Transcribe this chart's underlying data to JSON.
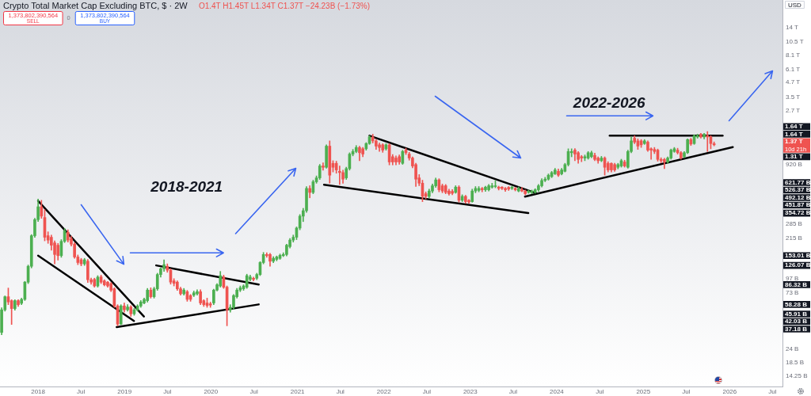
{
  "chart_data": {
    "type": "candlestick",
    "title": "Crypto Total Market Cap Excluding BTC, $ · 2W",
    "ylabel": "USD",
    "log": true,
    "xlim": [
      "2017-07-24",
      "2026-08-12"
    ],
    "xticks": [
      {
        "value": "2018-01-01",
        "label": "2018"
      },
      {
        "value": "2018-07-01",
        "label": "Jul"
      },
      {
        "value": "2019-01-01",
        "label": "2019"
      },
      {
        "value": "2019-07-01",
        "label": "Jul"
      },
      {
        "value": "2020-01-01",
        "label": "2020"
      },
      {
        "value": "2020-07-01",
        "label": "Jul"
      },
      {
        "value": "2021-01-01",
        "label": "2021"
      },
      {
        "value": "2021-07-01",
        "label": "Jul"
      },
      {
        "value": "2022-01-01",
        "label": "2022"
      },
      {
        "value": "2022-07-01",
        "label": "Jul"
      },
      {
        "value": "2023-01-01",
        "label": "2023"
      },
      {
        "value": "2023-07-01",
        "label": "Jul"
      },
      {
        "value": "2024-01-01",
        "label": "2024"
      },
      {
        "value": "2024-07-01",
        "label": "Jul"
      },
      {
        "value": "2025-01-01",
        "label": "2025"
      },
      {
        "value": "2025-07-01",
        "label": "Jul"
      },
      {
        "value": "2026-01-01",
        "label": "2026"
      },
      {
        "value": "2026-07-01",
        "label": "Jul"
      }
    ],
    "ylim": [
      11500000000.0,
      24000000000000.0
    ],
    "yticks": [
      {
        "value": 14250000000.0,
        "label": "14.25 B"
      },
      {
        "value": 18500000000.0,
        "label": "18.5 B"
      },
      {
        "value": 24000000000.0,
        "label": "24 B"
      },
      {
        "value": 73000000000.0,
        "label": "73 B"
      },
      {
        "value": 97000000000.0,
        "label": "97 B"
      },
      {
        "value": 215000000000.0,
        "label": "215 B"
      },
      {
        "value": 285000000000.0,
        "label": "285 B"
      },
      {
        "value": 920000000000.0,
        "label": "920 B"
      },
      {
        "value": 2700000000000.0,
        "label": "2.7 T"
      },
      {
        "value": 3500000000000.0,
        "label": "3.5 T"
      },
      {
        "value": 4700000000000.0,
        "label": "4.7 T"
      },
      {
        "value": 6100000000000.0,
        "label": "6.1 T"
      },
      {
        "value": 8100000000000.0,
        "label": "8.1 T"
      },
      {
        "value": 10500000000000.0,
        "label": "10.5 T"
      },
      {
        "value": 14000000000000.0,
        "label": "14 T"
      }
    ],
    "x": [
      "2017-07-31",
      "2017-08-14",
      "2017-08-28",
      "2017-09-11",
      "2017-09-25",
      "2017-10-09",
      "2017-10-23",
      "2017-11-06",
      "2017-11-20",
      "2017-12-04",
      "2017-12-18",
      "2018-01-01",
      "2018-01-15",
      "2018-01-29",
      "2018-02-12",
      "2018-02-26",
      "2018-03-12",
      "2018-03-26",
      "2018-04-09",
      "2018-04-23",
      "2018-05-07",
      "2018-05-21",
      "2018-06-04",
      "2018-06-18",
      "2018-07-02",
      "2018-07-16",
      "2018-07-30",
      "2018-08-13",
      "2018-08-27",
      "2018-09-10",
      "2018-09-24",
      "2018-10-08",
      "2018-10-22",
      "2018-11-05",
      "2018-11-19",
      "2018-12-03",
      "2018-12-17",
      "2018-12-31",
      "2019-01-14",
      "2019-01-28",
      "2019-02-11",
      "2019-02-25",
      "2019-03-11",
      "2019-03-25",
      "2019-04-08",
      "2019-04-22",
      "2019-05-06",
      "2019-05-20",
      "2019-06-03",
      "2019-06-17",
      "2019-07-01",
      "2019-07-15",
      "2019-07-29",
      "2019-08-12",
      "2019-08-26",
      "2019-09-09",
      "2019-09-23",
      "2019-10-07",
      "2019-10-21",
      "2019-11-04",
      "2019-11-18",
      "2019-12-02",
      "2019-12-16",
      "2019-12-30",
      "2020-01-13",
      "2020-01-27",
      "2020-02-10",
      "2020-02-24",
      "2020-03-09",
      "2020-03-23",
      "2020-04-06",
      "2020-04-20",
      "2020-05-04",
      "2020-05-18",
      "2020-06-01",
      "2020-06-15",
      "2020-06-29",
      "2020-07-13",
      "2020-07-27",
      "2020-08-10",
      "2020-08-24",
      "2020-09-07",
      "2020-09-21",
      "2020-10-05",
      "2020-10-19",
      "2020-11-02",
      "2020-11-16",
      "2020-11-30",
      "2020-12-14",
      "2020-12-28",
      "2021-01-11",
      "2021-01-25",
      "2021-02-08",
      "2021-02-22",
      "2021-03-08",
      "2021-03-22",
      "2021-04-05",
      "2021-04-19",
      "2021-05-03",
      "2021-05-17",
      "2021-05-31",
      "2021-06-14",
      "2021-06-28",
      "2021-07-12",
      "2021-07-26",
      "2021-08-09",
      "2021-08-23",
      "2021-09-06",
      "2021-09-20",
      "2021-10-04",
      "2021-10-18",
      "2021-11-01",
      "2021-11-15",
      "2021-11-29",
      "2021-12-13",
      "2021-12-27",
      "2022-01-10",
      "2022-01-24",
      "2022-02-07",
      "2022-02-21",
      "2022-03-07",
      "2022-03-21",
      "2022-04-04",
      "2022-04-18",
      "2022-05-02",
      "2022-05-16",
      "2022-05-30",
      "2022-06-13",
      "2022-06-27",
      "2022-07-11",
      "2022-07-25",
      "2022-08-08",
      "2022-08-22",
      "2022-09-05",
      "2022-09-19",
      "2022-10-03",
      "2022-10-17",
      "2022-10-31",
      "2022-11-14",
      "2022-11-28",
      "2022-12-12",
      "2022-12-26",
      "2023-01-09",
      "2023-01-23",
      "2023-02-06",
      "2023-02-20",
      "2023-03-06",
      "2023-03-20",
      "2023-04-03",
      "2023-04-17",
      "2023-05-01",
      "2023-05-15",
      "2023-05-29",
      "2023-06-12",
      "2023-06-26",
      "2023-07-10",
      "2023-07-24",
      "2023-08-07",
      "2023-08-21",
      "2023-09-04",
      "2023-09-18",
      "2023-10-02",
      "2023-10-16",
      "2023-10-30",
      "2023-11-13",
      "2023-11-27",
      "2023-12-11",
      "2023-12-25",
      "2024-01-08",
      "2024-01-22",
      "2024-02-05",
      "2024-02-19",
      "2024-03-04",
      "2024-03-18",
      "2024-04-01",
      "2024-04-15",
      "2024-04-29",
      "2024-05-13",
      "2024-05-27",
      "2024-06-10",
      "2024-06-24",
      "2024-07-08",
      "2024-07-22",
      "2024-08-05",
      "2024-08-19",
      "2024-09-02",
      "2024-09-16",
      "2024-09-30",
      "2024-10-14",
      "2024-10-28",
      "2024-11-11",
      "2024-11-25",
      "2024-12-09",
      "2024-12-23",
      "2025-01-06",
      "2025-01-20",
      "2025-02-03",
      "2025-02-17",
      "2025-03-03",
      "2025-03-17",
      "2025-03-31",
      "2025-04-14",
      "2025-04-28",
      "2025-05-12",
      "2025-05-26",
      "2025-06-09",
      "2025-06-23",
      "2025-07-07",
      "2025-07-21",
      "2025-08-04",
      "2025-08-18",
      "2025-09-01",
      "2025-09-15",
      "2025-09-29",
      "2025-10-13",
      "2025-10-27"
    ],
    "ohlc": [
      [
        33500000000.0,
        54500000000.0,
        32000000000.0,
        52400000000.0
      ],
      [
        52400000000.0,
        69000000000.0,
        51000000000.0,
        67900000000.0
      ],
      [
        67900000000.0,
        80600000000.0,
        58000000000.0,
        61200000000.0
      ],
      [
        62800000000.0,
        64000000000.0,
        39200000000.0,
        53700000000.0
      ],
      [
        53700000000.0,
        64000000000.0,
        52000000000.0,
        62800000000.0
      ],
      [
        62800000000.0,
        64000000000.0,
        56000000000.0,
        58000000000.0
      ],
      [
        59600000000.0,
        66000000000.0,
        58000000000.0,
        64400000000.0
      ],
      [
        64400000000.0,
        92000000000.0,
        63000000000.0,
        90600000000.0
      ],
      [
        90600000000.0,
        127000000000.0,
        88000000000.0,
        124000000000.0
      ],
      [
        124000000000.0,
        232000000000.0,
        120000000000.0,
        227000000000.0
      ],
      [
        227000000000.0,
        320000000000.0,
        220000000000.0,
        312000000000.0
      ],
      [
        312000000000.0,
        469000000000.0,
        300000000000.0,
        402000000000.0
      ],
      [
        402000000000.0,
        457000000000.0,
        320000000000.0,
        334000000000.0
      ],
      [
        325000000000.0,
        380000000000.0,
        205000000000.0,
        220000000000.0
      ],
      [
        227000000000.0,
        245000000000.0,
        195000000000.0,
        208000000000.0
      ],
      [
        220000000000.0,
        230000000000.0,
        170000000000.0,
        188000000000.0
      ],
      [
        197000000000.0,
        205000000000.0,
        130000000000.0,
        156500000000.0
      ],
      [
        188000000000.0,
        195000000000.0,
        140000000000.0,
        153000000000.0
      ],
      [
        153000000000.0,
        210000000000.0,
        148000000000.0,
        203000000000.0
      ],
      [
        203000000000.0,
        262000000000.0,
        198000000000.0,
        250000000000.0
      ],
      [
        243000000000.0,
        255000000000.0,
        200000000000.0,
        208000000000.0
      ],
      [
        214000000000.0,
        225000000000.0,
        185000000000.0,
        192000000000.0
      ],
      [
        192000000000.0,
        198000000000.0,
        145000000000.0,
        149000000000.0
      ],
      [
        149000000000.0,
        155000000000.0,
        128000000000.0,
        133500000000.0
      ],
      [
        141000000000.0,
        145000000000.0,
        125000000000.0,
        130000000000.0
      ],
      [
        130000000000.0,
        145000000000.0,
        126000000000.0,
        141000000000.0
      ],
      [
        137000000000.0,
        142000000000.0,
        90000000000.0,
        95000000000.0
      ],
      [
        95000000000.0,
        98000000000.0,
        87000000000.0,
        90600000000.0
      ],
      [
        95600000000.0,
        98000000000.0,
        82000000000.0,
        84000000000.0
      ],
      [
        84000000000.0,
        103000000000.0,
        82000000000.0,
        100000000000.0
      ],
      [
        100400000000.0,
        104000000000.0,
        88000000000.0,
        90600000000.0
      ],
      [
        92900000000.0,
        95000000000.0,
        84000000000.0,
        85900000000.0
      ],
      [
        90600000000.0,
        92000000000.0,
        82000000000.0,
        84000000000.0
      ],
      [
        88000000000.0,
        90000000000.0,
        75000000000.0,
        77400000000.0
      ],
      [
        79400000000.0,
        81000000000.0,
        55000000000.0,
        56600000000.0
      ],
      [
        56600000000.0,
        58000000000.0,
        38200000000.0,
        39500000000.0
      ],
      [
        39500000000.0,
        58000000000.0,
        39000000000.0,
        56600000000.0
      ],
      [
        56600000000.0,
        60000000000.0,
        50000000000.0,
        52400000000.0
      ],
      [
        52400000000.0,
        58000000000.0,
        51000000000.0,
        55400000000.0
      ],
      [
        55400000000.0,
        57000000000.0,
        46000000000.0,
        48400000000.0
      ],
      [
        48400000000.0,
        54000000000.0,
        47000000000.0,
        52400000000.0
      ],
      [
        52400000000.0,
        58000000000.0,
        51000000000.0,
        56600000000.0
      ],
      [
        56600000000.0,
        63000000000.0,
        55000000000.0,
        61200000000.0
      ],
      [
        60000000000.0,
        66000000000.0,
        59000000000.0,
        64400000000.0
      ],
      [
        62800000000.0,
        80000000000.0,
        61000000000.0,
        77400000000.0
      ],
      [
        77400000000.0,
        81000000000.0,
        66000000000.0,
        67900000000.0
      ],
      [
        67900000000.0,
        82000000000.0,
        66000000000.0,
        79400000000.0
      ],
      [
        79400000000.0,
        108000000000.0,
        77000000000.0,
        105300000000.0
      ],
      [
        105300000000.0,
        120000000000.0,
        100000000000.0,
        118000000000.0
      ],
      [
        118000000000.0,
        141000000000.0,
        112000000000.0,
        128000000000.0
      ],
      [
        124000000000.0,
        130000000000.0,
        110000000000.0,
        114700000000.0
      ],
      [
        114700000000.0,
        118000000000.0,
        87000000000.0,
        90600000000.0
      ],
      [
        92900000000.0,
        97000000000.0,
        84000000000.0,
        88400000000.0
      ],
      [
        90600000000.0,
        93000000000.0,
        77000000000.0,
        79400000000.0
      ],
      [
        79400000000.0,
        82000000000.0,
        70000000000.0,
        72000000000.0
      ],
      [
        72000000000.0,
        80000000000.0,
        70000000000.0,
        77400000000.0
      ],
      [
        75000000000.0,
        77000000000.0,
        62000000000.0,
        64400000000.0
      ],
      [
        69500000000.0,
        71000000000.0,
        62000000000.0,
        64400000000.0
      ],
      [
        70000000000.0,
        76000000000.0,
        68000000000.0,
        73400000000.0
      ],
      [
        72000000000.0,
        78000000000.0,
        70000000000.0,
        75000000000.0
      ],
      [
        75000000000.0,
        78000000000.0,
        58000000000.0,
        60000000000.0
      ],
      [
        62800000000.0,
        64000000000.0,
        56000000000.0,
        58000000000.0
      ],
      [
        60000000000.0,
        66000000000.0,
        55000000000.0,
        57000000000.0
      ],
      [
        59000000000.0,
        61000000000.0,
        55000000000.0,
        57500000000.0
      ],
      [
        60000000000.0,
        79000000000.0,
        58000000000.0,
        77400000000.0
      ],
      [
        77400000000.0,
        88000000000.0,
        76000000000.0,
        85900000000.0
      ],
      [
        84000000000.0,
        112000000000.0,
        82000000000.0,
        103000000000.0
      ],
      [
        100400000000.0,
        104000000000.0,
        80000000000.0,
        82000000000.0
      ],
      [
        82000000000.0,
        84000000000.0,
        38200000000.0,
        52400000000.0
      ],
      [
        52400000000.0,
        58000000000.0,
        50000000000.0,
        55000000000.0
      ],
      [
        55000000000.0,
        71000000000.0,
        53000000000.0,
        69500000000.0
      ],
      [
        67900000000.0,
        80000000000.0,
        66000000000.0,
        77400000000.0
      ],
      [
        77400000000.0,
        84000000000.0,
        75000000000.0,
        81000000000.0
      ],
      [
        79400000000.0,
        86000000000.0,
        77000000000.0,
        84000000000.0
      ],
      [
        82000000000.0,
        106000000000.0,
        80000000000.0,
        103000000000.0
      ],
      [
        95600000000.0,
        104000000000.0,
        93000000000.0,
        100400000000.0
      ],
      [
        97800000000.0,
        100000000000.0,
        93000000000.0,
        95600000000.0
      ],
      [
        97800000000.0,
        108000000000.0,
        95000000000.0,
        105300000000.0
      ],
      [
        105300000000.0,
        136000000000.0,
        103000000000.0,
        133500000000.0
      ],
      [
        133500000000.0,
        163000000000.0,
        130000000000.0,
        156500000000.0
      ],
      [
        156500000000.0,
        162000000000.0,
        148000000000.0,
        153000000000.0
      ],
      [
        156500000000.0,
        160000000000.0,
        124000000000.0,
        137000000000.0
      ],
      [
        137000000000.0,
        150000000000.0,
        133000000000.0,
        145000000000.0
      ],
      [
        142000000000.0,
        152000000000.0,
        138000000000.0,
        149000000000.0
      ],
      [
        145000000000.0,
        158000000000.0,
        142000000000.0,
        154000000000.0
      ],
      [
        153000000000.0,
        162000000000.0,
        150000000000.0,
        156500000000.0
      ],
      [
        156500000000.0,
        192000000000.0,
        152000000000.0,
        188000000000.0
      ],
      [
        183000000000.0,
        215000000000.0,
        178000000000.0,
        208000000000.0
      ],
      [
        208000000000.0,
        230000000000.0,
        200000000000.0,
        220000000000.0
      ],
      [
        220000000000.0,
        270000000000.0,
        210000000000.0,
        264000000000.0
      ],
      [
        264000000000.0,
        345000000000.0,
        255000000000.0,
        334000000000.0
      ],
      [
        334000000000.0,
        390000000000.0,
        300000000000.0,
        372000000000.0
      ],
      [
        372000000000.0,
        600000000000.0,
        360000000000.0,
        578000000000.0
      ],
      [
        578000000000.0,
        610000000000.0,
        480000000000.0,
        534000000000.0
      ],
      [
        534000000000.0,
        680000000000.0,
        520000000000.0,
        659000000000.0
      ],
      [
        659000000000.0,
        740000000000.0,
        640000000000.0,
        712000000000.0
      ],
      [
        712000000000.0,
        930000000000.0,
        690000000000.0,
        901000000000.0
      ],
      [
        901000000000.0,
        960000000000.0,
        830000000000.0,
        878000000000.0
      ],
      [
        878000000000.0,
        1370000000000.0,
        860000000000.0,
        1334000000000.0
      ],
      [
        1334000000000.0,
        1480000000000.0,
        641000000000.0,
        751000000000.0
      ],
      [
        949000000000.0,
        1000000000000.0,
        800000000000.0,
        878000000000.0
      ],
      [
        949000000000.0,
        990000000000.0,
        780000000000.0,
        833000000000.0
      ],
      [
        811000000000.0,
        900000000000.0,
        625000000000.0,
        791000000000.0
      ],
      [
        791000000000.0,
        830000000000.0,
        640000000000.0,
        694000000000.0
      ],
      [
        712000000000.0,
        880000000000.0,
        690000000000.0,
        855000000000.0
      ],
      [
        855000000000.0,
        1170000000000.0,
        830000000000.0,
        1140000000000.0
      ],
      [
        1140000000000.0,
        1250000000000.0,
        1100000000000.0,
        1200000000000.0
      ],
      [
        1200000000000.0,
        1350000000000.0,
        1170000000000.0,
        1298000000000.0
      ],
      [
        1298000000000.0,
        1330000000000.0,
        1000000000000.0,
        1171000000000.0
      ],
      [
        1266000000000.0,
        1300000000000.0,
        1080000000000.0,
        1140000000000.0
      ],
      [
        1266000000000.0,
        1430000000000.0,
        1230000000000.0,
        1404000000000.0
      ],
      [
        1404000000000.0,
        1640000000000.0,
        1380000000000.0,
        1600000000000.0
      ],
      [
        1600000000000.0,
        1690000000000.0,
        1420000000000.0,
        1480000000000.0
      ],
      [
        1480000000000.0,
        1520000000000.0,
        1250000000000.0,
        1334000000000.0
      ],
      [
        1369000000000.0,
        1420000000000.0,
        1200000000000.0,
        1298000000000.0
      ],
      [
        1369000000000.0,
        1400000000000.0,
        1180000000000.0,
        1233000000000.0
      ],
      [
        1266000000000.0,
        1400000000000.0,
        1230000000000.0,
        1369000000000.0
      ],
      [
        1369000000000.0,
        1400000000000.0,
        920000000000.0,
        975000000000.0
      ],
      [
        1083000000000.0,
        1130000000000.0,
        920000000000.0,
        975000000000.0
      ],
      [
        1054000000000.0,
        1100000000000.0,
        920000000000.0,
        975000000000.0
      ],
      [
        1083000000000.0,
        1120000000000.0,
        930000000000.0,
        975000000000.0
      ],
      [
        949000000000.0,
        1230000000000.0,
        930000000000.0,
        1200000000000.0
      ],
      [
        1233000000000.0,
        1280000000000.0,
        1130000000000.0,
        1171000000000.0
      ],
      [
        1140000000000.0,
        1180000000000.0,
        1010000000000.0,
        1054000000000.0
      ],
      [
        1054000000000.0,
        1080000000000.0,
        870000000000.0,
        901000000000.0
      ],
      [
        926000000000.0,
        950000000000.0,
        600000000000.0,
        694000000000.0
      ],
      [
        712000000000.0,
        760000000000.0,
        610000000000.0,
        641000000000.0
      ],
      [
        641000000000.0,
        680000000000.0,
        445000000000.0,
        494000000000.0
      ],
      [
        521000000000.0,
        540000000000.0,
        470000000000.0,
        494000000000.0
      ],
      [
        494000000000.0,
        570000000000.0,
        480000000000.0,
        549000000000.0
      ],
      [
        549000000000.0,
        630000000000.0,
        530000000000.0,
        609000000000.0
      ],
      [
        609000000000.0,
        710000000000.0,
        590000000000.0,
        684000000000.0
      ],
      [
        684000000000.0,
        700000000000.0,
        540000000000.0,
        563000000000.0
      ],
      [
        609000000000.0,
        630000000000.0,
        530000000000.0,
        549000000000.0
      ],
      [
        609000000000.0,
        625000000000.0,
        520000000000.0,
        534000000000.0
      ],
      [
        549000000000.0,
        570000000000.0,
        505000000000.0,
        521000000000.0
      ],
      [
        545000000000.0,
        565000000000.0,
        510000000000.0,
        525000000000.0
      ],
      [
        534000000000.0,
        610000000000.0,
        525000000000.0,
        593000000000.0
      ],
      [
        593000000000.0,
        610000000000.0,
        440000000000.0,
        457000000000.0
      ],
      [
        457000000000.0,
        510000000000.0,
        445000000000.0,
        494000000000.0
      ],
      [
        494000000000.0,
        505000000000.0,
        430000000000.0,
        445000000000.0
      ],
      [
        457000000000.0,
        465000000000.0,
        430000000000.0,
        442000000000.0
      ],
      [
        445000000000.0,
        570000000000.0,
        440000000000.0,
        549000000000.0
      ],
      [
        549000000000.0,
        600000000000.0,
        530000000000.0,
        578000000000.0
      ],
      [
        556000000000.0,
        600000000000.0,
        540000000000.0,
        578000000000.0
      ],
      [
        578000000000.0,
        590000000000.0,
        540000000000.0,
        563000000000.0
      ],
      [
        563000000000.0,
        605000000000.0,
        545000000000.0,
        593000000000.0
      ],
      [
        563000000000.0,
        625000000000.0,
        550000000000.0,
        609000000000.0
      ],
      [
        593000000000.0,
        640000000000.0,
        580000000000.0,
        609000000000.0
      ],
      [
        600000000000.0,
        676000000000.0,
        585000000000.0,
        609000000000.0
      ],
      [
        593000000000.0,
        605000000000.0,
        560000000000.0,
        578000000000.0
      ],
      [
        593000000000.0,
        600000000000.0,
        565000000000.0,
        578000000000.0
      ],
      [
        578000000000.0,
        590000000000.0,
        545000000000.0,
        563000000000.0
      ],
      [
        590000000000.0,
        600000000000.0,
        555000000000.0,
        570000000000.0
      ],
      [
        578000000000.0,
        605000000000.0,
        565000000000.0,
        593000000000.0
      ],
      [
        578000000000.0,
        590000000000.0,
        550000000000.0,
        563000000000.0
      ],
      [
        549000000000.0,
        595000000000.0,
        540000000000.0,
        578000000000.0
      ],
      [
        563000000000.0,
        590000000000.0,
        540000000000.0,
        549000000000.0
      ],
      [
        549000000000.0,
        560000000000.0,
        510000000000.0,
        521000000000.0
      ],
      [
        534000000000.0,
        560000000000.0,
        525000000000.0,
        549000000000.0
      ],
      [
        534000000000.0,
        560000000000.0,
        520000000000.0,
        549000000000.0
      ],
      [
        534000000000.0,
        575000000000.0,
        525000000000.0,
        563000000000.0
      ],
      [
        563000000000.0,
        625000000000.0,
        545000000000.0,
        609000000000.0
      ],
      [
        609000000000.0,
        700000000000.0,
        595000000000.0,
        676000000000.0
      ],
      [
        676000000000.0,
        720000000000.0,
        660000000000.0,
        694000000000.0
      ],
      [
        694000000000.0,
        770000000000.0,
        680000000000.0,
        751000000000.0
      ],
      [
        731000000000.0,
        810000000000.0,
        715000000000.0,
        791000000000.0
      ],
      [
        771000000000.0,
        860000000000.0,
        760000000000.0,
        833000000000.0
      ],
      [
        811000000000.0,
        850000000000.0,
        730000000000.0,
        751000000000.0
      ],
      [
        771000000000.0,
        860000000000.0,
        755000000000.0,
        833000000000.0
      ],
      [
        811000000000.0,
        950000000000.0,
        800000000000.0,
        926000000000.0
      ],
      [
        926000000000.0,
        1266000000000.0,
        900000000000.0,
        1200000000000.0
      ],
      [
        1171000000000.0,
        1266000000000.0,
        1080000000000.0,
        1200000000000.0
      ],
      [
        1233000000000.0,
        1270000000000.0,
        1000000000000.0,
        1140000000000.0
      ],
      [
        1171000000000.0,
        1200000000000.0,
        950000000000.0,
        1026000000000.0
      ],
      [
        1083000000000.0,
        1110000000000.0,
        980000000000.0,
        1054000000000.0
      ],
      [
        1054000000000.0,
        1120000000000.0,
        1000000000000.0,
        1083000000000.0
      ],
      [
        1054000000000.0,
        1200000000000.0,
        1030000000000.0,
        1171000000000.0
      ],
      [
        1083000000000.0,
        1210000000000.0,
        1060000000000.0,
        1171000000000.0
      ],
      [
        1111000000000.0,
        1160000000000.0,
        1000000000000.0,
        1026000000000.0
      ],
      [
        1054000000000.0,
        1080000000000.0,
        950000000000.0,
        1000000000000.0
      ],
      [
        1000000000000.0,
        1090000000000.0,
        980000000000.0,
        1054000000000.0
      ],
      [
        1054000000000.0,
        1080000000000.0,
        751000000000.0,
        878000000000.0
      ],
      [
        949000000000.0,
        980000000000.0,
        800000000000.0,
        833000000000.0
      ],
      [
        949000000000.0,
        960000000000.0,
        800000000000.0,
        833000000000.0
      ],
      [
        926000000000.0,
        950000000000.0,
        810000000000.0,
        833000000000.0
      ],
      [
        878000000000.0,
        950000000000.0,
        850000000000.0,
        926000000000.0
      ],
      [
        901000000000.0,
        1030000000000.0,
        880000000000.0,
        1000000000000.0
      ],
      [
        975000000000.0,
        1010000000000.0,
        880000000000.0,
        901000000000.0
      ],
      [
        878000000000.0,
        1230000000000.0,
        860000000000.0,
        1200000000000.0
      ],
      [
        1200000000000.0,
        1600000000000.0,
        1170000000000.0,
        1480000000000.0
      ],
      [
        1560000000000.0,
        1640000000000.0,
        1400000000000.0,
        1443000000000.0
      ],
      [
        1480000000000.0,
        1540000000000.0,
        1250000000000.0,
        1334000000000.0
      ],
      [
        1480000000000.0,
        1520000000000.0,
        1300000000000.0,
        1369000000000.0
      ],
      [
        1404000000000.0,
        1520000000000.0,
        1380000000000.0,
        1480000000000.0
      ],
      [
        1443000000000.0,
        1480000000000.0,
        1200000000000.0,
        1233000000000.0
      ],
      [
        1266000000000.0,
        1290000000000.0,
        1026000000000.0,
        1233000000000.0
      ],
      [
        1250000000000.0,
        1300000000000.0,
        1150000000000.0,
        1200000000000.0
      ],
      [
        1233000000000.0,
        1260000000000.0,
        990000000000.0,
        1026000000000.0
      ],
      [
        1026000000000.0,
        1060000000000.0,
        960000000000.0,
        1000000000000.0
      ],
      [
        1026000000000.0,
        1050000000000.0,
        855000000000.0,
        975000000000.0
      ],
      [
        975000000000.0,
        1080000000000.0,
        950000000000.0,
        1054000000000.0
      ],
      [
        1054000000000.0,
        1260000000000.0,
        1030000000000.0,
        1233000000000.0
      ],
      [
        1200000000000.0,
        1300000000000.0,
        1180000000000.0,
        1266000000000.0
      ],
      [
        1233000000000.0,
        1280000000000.0,
        1140000000000.0,
        1171000000000.0
      ],
      [
        1171000000000.0,
        1200000000000.0,
        1030000000000.0,
        1054000000000.0
      ],
      [
        1083000000000.0,
        1200000000000.0,
        1060000000000.0,
        1171000000000.0
      ],
      [
        1171000000000.0,
        1540000000000.0,
        1150000000000.0,
        1518000000000.0
      ],
      [
        1518000000000.0,
        1560000000000.0,
        1350000000000.0,
        1390000000000.0
      ],
      [
        1404000000000.0,
        1670000000000.0,
        1380000000000.0,
        1644000000000.0
      ],
      [
        1600000000000.0,
        1690000000000.0,
        1560000000000.0,
        1644000000000.0
      ],
      [
        1688000000000.0,
        1720000000000.0,
        1560000000000.0,
        1600000000000.0
      ],
      [
        1600000000000.0,
        1720000000000.0,
        1540000000000.0,
        1688000000000.0
      ],
      [
        1644000000000.0,
        1780000000000.0,
        1200000000000.0,
        1600000000000.0
      ],
      [
        1600000000000.0,
        1640000000000.0,
        1266000000000.0,
        1404000000000.0
      ],
      [
        1400000000000.0,
        1450000000000.0,
        1340000000000.0,
        1370000000000.0
      ]
    ],
    "colors": [
      "#4caf50",
      "#4caf50",
      "#ef5350",
      "#ef5350",
      "#4caf50",
      "#ef5350",
      "#4caf50",
      "#4caf50",
      "#4caf50",
      "#4caf50",
      "#4caf50",
      "#4caf50",
      "#ef5350",
      "#ef5350",
      "#ef5350",
      "#ef5350",
      "#ef5350",
      "#ef5350",
      "#4caf50",
      "#4caf50",
      "#ef5350",
      "#ef5350",
      "#ef5350",
      "#ef5350",
      "#ef5350",
      "#4caf50",
      "#ef5350",
      "#ef5350",
      "#ef5350",
      "#4caf50",
      "#ef5350",
      "#ef5350",
      "#ef5350",
      "#ef5350",
      "#ef5350",
      "#ef5350",
      "#4caf50",
      "#ef5350",
      "#4caf50",
      "#ef5350",
      "#4caf50",
      "#4caf50",
      "#4caf50",
      "#4caf50",
      "#4caf50",
      "#ef5350",
      "#4caf50",
      "#4caf50",
      "#4caf50",
      "#4caf50",
      "#ef5350",
      "#ef5350",
      "#ef5350",
      "#ef5350",
      "#ef5350",
      "#4caf50",
      "#ef5350",
      "#ef5350",
      "#4caf50",
      "#4caf50",
      "#ef5350",
      "#ef5350",
      "#ef5350",
      "#ef5350",
      "#4caf50",
      "#4caf50",
      "#4caf50",
      "#ef5350",
      "#ef5350",
      "#4caf50",
      "#4caf50",
      "#4caf50",
      "#4caf50",
      "#4caf50",
      "#4caf50",
      "#4caf50",
      "#ef5350",
      "#4caf50",
      "#4caf50",
      "#4caf50",
      "#ef5350",
      "#ef5350",
      "#4caf50",
      "#4caf50",
      "#4caf50",
      "#4caf50",
      "#4caf50",
      "#4caf50",
      "#4caf50",
      "#4caf50",
      "#4caf50",
      "#4caf50",
      "#4caf50",
      "#ef5350",
      "#4caf50",
      "#4caf50",
      "#4caf50",
      "#ef5350",
      "#4caf50",
      "#ef5350",
      "#ef5350",
      "#ef5350",
      "#ef5350",
      "#ef5350",
      "#4caf50",
      "#4caf50",
      "#4caf50",
      "#4caf50",
      "#ef5350",
      "#ef5350",
      "#4caf50",
      "#4caf50",
      "#ef5350",
      "#ef5350",
      "#ef5350",
      "#ef5350",
      "#4caf50",
      "#ef5350",
      "#ef5350",
      "#ef5350",
      "#ef5350",
      "#4caf50",
      "#ef5350",
      "#ef5350",
      "#ef5350",
      "#ef5350",
      "#ef5350",
      "#ef5350",
      "#ef5350",
      "#4caf50",
      "#4caf50",
      "#4caf50",
      "#ef5350",
      "#ef5350",
      "#ef5350",
      "#ef5350",
      "#ef5350",
      "#4caf50",
      "#ef5350",
      "#4caf50",
      "#ef5350",
      "#ef5350",
      "#4caf50",
      "#4caf50",
      "#4caf50",
      "#ef5350",
      "#4caf50",
      "#4caf50",
      "#4caf50",
      "#4caf50",
      "#ef5350",
      "#ef5350",
      "#ef5350",
      "#ef5350",
      "#4caf50",
      "#ef5350",
      "#4caf50",
      "#ef5350",
      "#ef5350",
      "#4caf50",
      "#4caf50",
      "#4caf50",
      "#4caf50",
      "#4caf50",
      "#4caf50",
      "#4caf50",
      "#4caf50",
      "#4caf50",
      "#ef5350",
      "#4caf50",
      "#4caf50",
      "#4caf50",
      "#4caf50",
      "#ef5350",
      "#ef5350",
      "#ef5350",
      "#4caf50",
      "#4caf50",
      "#4caf50",
      "#ef5350",
      "#ef5350",
      "#4caf50",
      "#ef5350",
      "#ef5350",
      "#ef5350",
      "#ef5350",
      "#4caf50",
      "#4caf50",
      "#ef5350",
      "#4caf50",
      "#4caf50",
      "#ef5350",
      "#ef5350",
      "#ef5350",
      "#4caf50",
      "#ef5350",
      "#ef5350",
      "#ef5350",
      "#ef5350",
      "#ef5350",
      "#ef5350",
      "#4caf50",
      "#4caf50",
      "#4caf50",
      "#ef5350",
      "#ef5350",
      "#4caf50",
      "#4caf50",
      "#ef5350",
      "#4caf50",
      "#4caf50",
      "#ef5350",
      "#4caf50",
      "#ef5350",
      "#ef5350",
      "#ef5350"
    ],
    "series": [
      {
        "type": "line",
        "color": "#000000",
        "x": [
          "2018-01-01",
          "2019-03-24"
        ],
        "values": [
          451870000000.0,
          45910000000.0
        ]
      },
      {
        "type": "line",
        "color": "#000000",
        "x": [
          "2018-01-01",
          "2019-02-10"
        ],
        "values": [
          153010000000.0,
          42030000000.0
        ]
      },
      {
        "type": "line",
        "color": "#000000",
        "x": [
          "2019-05-15",
          "2020-07-21"
        ],
        "values": [
          126070000000.0,
          86320000000.0
        ]
      },
      {
        "type": "line",
        "color": "#000000",
        "x": [
          "2018-11-29",
          "2020-07-21"
        ],
        "values": [
          37180000000.0,
          58280000000.0
        ]
      },
      {
        "type": "line",
        "color": "#000000",
        "x": [
          "2021-11-01",
          "2023-10-06"
        ],
        "values": [
          1640000000000.0,
          526370000000.0
        ]
      },
      {
        "type": "line",
        "color": "#000000",
        "x": [
          "2021-04-23",
          "2023-09-03"
        ],
        "values": [
          621770000000.0,
          354720000000.0
        ]
      },
      {
        "type": "line",
        "color": "#000000",
        "x": [
          "2023-08-20",
          "2026-01-14"
        ],
        "values": [
          492120000000.0,
          1310000000000.0
        ]
      },
      {
        "type": "line",
        "color": "#000000",
        "x": [
          "2024-08-12",
          "2025-12-02"
        ],
        "values": [
          1640000000000.0,
          1640000000000.0
        ]
      }
    ],
    "annotations": [
      "O1.4T H1.45T L1.34T C1.37T −24.23B (−1.73%)",
      "1,373,802,390,564\nSELL",
      "0",
      "1,373,802,390,564\nBUY",
      "2018-2021",
      "2022-2026",
      "1.37 T\n10d 21h",
      "1.64 T",
      "1.64 T",
      "1.31 T",
      "621.77 B",
      "526.37 B",
      "492.12 B",
      "451.87 B",
      "354.72 B",
      "153.01 B",
      "126.07 B",
      "86.32 B",
      "58.28 B",
      "45.91 B",
      "42.03 B",
      "37.18 B"
    ]
  }
}
